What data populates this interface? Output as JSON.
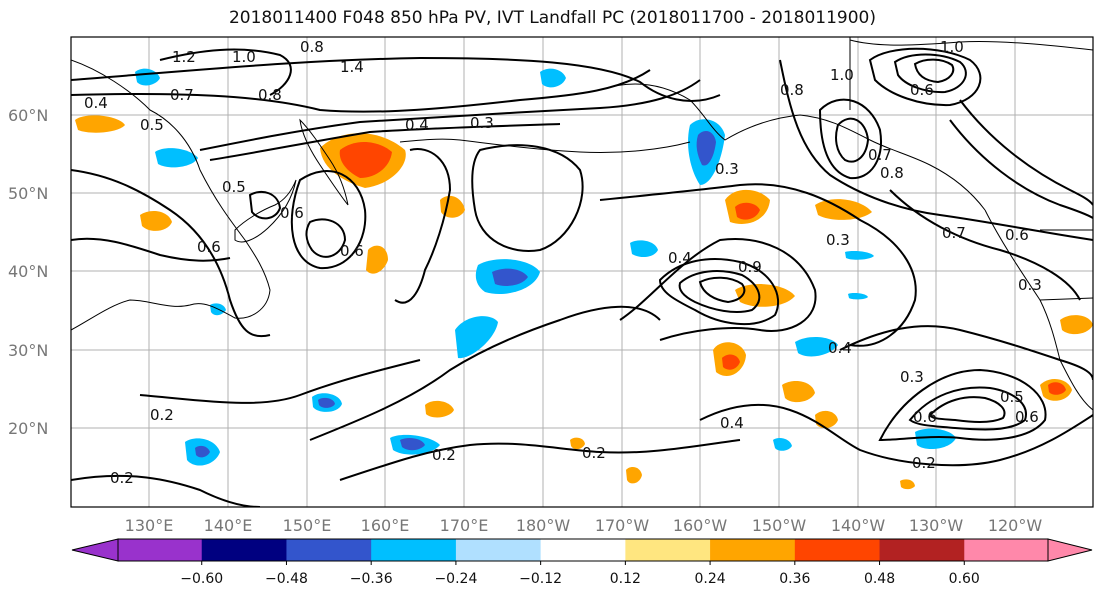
{
  "title": "2018011400 F048 850 hPa PV, IVT Landfall PC (2018011700 - 2018011900)",
  "map": {
    "lon_labels": [
      "130°E",
      "140°E",
      "150°E",
      "160°E",
      "170°E",
      "180°W",
      "170°W",
      "160°W",
      "150°W",
      "140°W",
      "130°W",
      "120°W"
    ],
    "lat_labels": [
      "60°N",
      "50°N",
      "40°N",
      "30°N",
      "20°N"
    ],
    "contour_labels": [
      "1.2",
      "1.0",
      "0.8",
      "1.4",
      "0.7",
      "0.4",
      "0.5",
      "0.8",
      "0.6",
      "0.4",
      "0.3",
      "0.5",
      "0.6",
      "0.6",
      "0.3",
      "0.4",
      "0.9",
      "0.4",
      "0.2",
      "0.2",
      "0.2",
      "0.2",
      "0.4",
      "0.3",
      "0.6",
      "0.5",
      "0.6",
      "0.7",
      "0.8",
      "0.6",
      "1.0",
      "0.7",
      "0.6",
      "0.3",
      "0.2",
      "0.3",
      "0.8",
      "1.0"
    ]
  },
  "colorbar": {
    "colors": [
      "#9932cc",
      "#000080",
      "#3355cc",
      "#00bfff",
      "#b0e0ff",
      "#ffffff",
      "#ffe680",
      "#ffa500",
      "#ff4500",
      "#b22222",
      "#ff88aa"
    ],
    "tick_labels": [
      "−0.60",
      "−0.48",
      "−0.36",
      "−0.24",
      "−0.12",
      "0.12",
      "0.24",
      "0.36",
      "0.48",
      "0.60"
    ]
  }
}
